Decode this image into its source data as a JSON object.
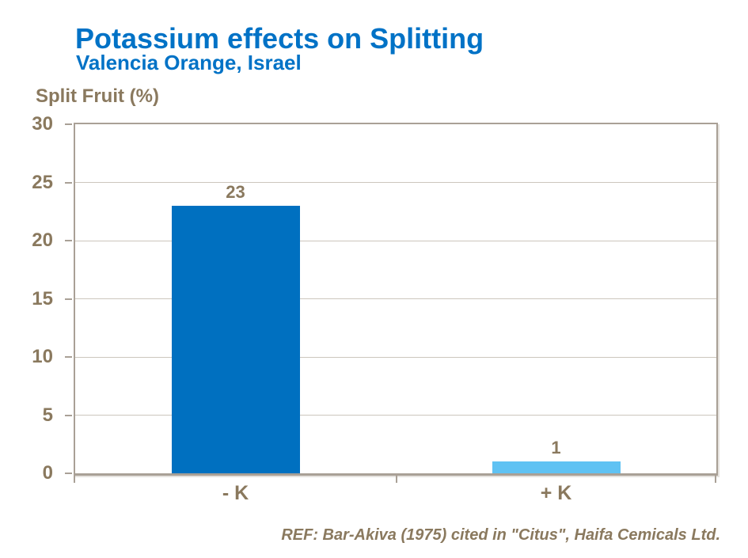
{
  "header": {
    "title": "Potassium effects on Splitting",
    "subtitle": "Valencia Orange, Israel"
  },
  "chart_data": {
    "type": "bar",
    "title": "Potassium effects on Splitting",
    "subtitle": "Valencia Orange, Israel",
    "ylabel": "Split Fruit (%)",
    "xlabel": "",
    "categories": [
      "- K",
      "+ K"
    ],
    "values": [
      23,
      1
    ],
    "data_labels": [
      "23",
      "1"
    ],
    "ylim": [
      0,
      30
    ],
    "yticks": [
      0,
      5,
      10,
      15,
      20,
      25,
      30
    ],
    "grid": "horizontal",
    "legend": "none",
    "bar_colors": [
      "#0070c0",
      "#5fc2f3"
    ]
  },
  "footer": {
    "reference": "REF: Bar-Akiva (1975) cited in \"Citus\", Haifa Cemicals Ltd."
  },
  "colors": {
    "title_blue": "#0072c6",
    "bar_dark_blue": "#0070c0",
    "bar_light_blue": "#5fc2f3",
    "text_brown": "#8a795e",
    "axis_line": "#a9a096",
    "gridline": "#ccc6bd",
    "background": "#ffffff"
  }
}
